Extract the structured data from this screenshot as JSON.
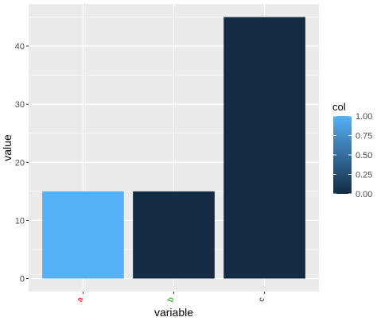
{
  "chart_data": {
    "type": "bar",
    "categories": [
      "a",
      "b",
      "c"
    ],
    "values": [
      15,
      15,
      45
    ],
    "fill_values": [
      1,
      0,
      0
    ],
    "xlabel": "variable",
    "ylabel": "value",
    "ylim": [
      -2.25,
      47.25
    ],
    "yticks": [
      0,
      10,
      20,
      30,
      40
    ],
    "ytick_labels": [
      "0",
      "10",
      "20",
      "30",
      "40"
    ],
    "grid": true,
    "category_label_colors": [
      "#ff0000",
      "#00a000",
      "#1a1a1a"
    ],
    "legend": {
      "title": "col",
      "position": "right",
      "range": [
        0,
        1
      ],
      "ticks": [
        0,
        0.25,
        0.5,
        0.75,
        1
      ],
      "tick_labels": [
        "0.00",
        "0.25",
        "0.50",
        "0.75",
        "1.00"
      ],
      "low_color": "#132b43",
      "high_color": "#56b1f7"
    },
    "panel_background": "#ebebeb",
    "grid_color": "#ffffff"
  }
}
